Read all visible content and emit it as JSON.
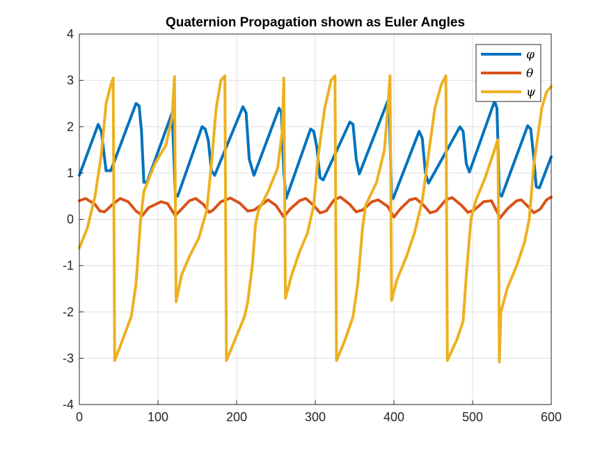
{
  "chart_data": {
    "type": "line",
    "title": "Quaternion Propagation shown as Euler Angles",
    "xlabel": "",
    "ylabel": "",
    "xlim": [
      0,
      600
    ],
    "ylim": [
      -4,
      4
    ],
    "xticks": [
      0,
      100,
      200,
      300,
      400,
      500,
      600
    ],
    "yticks": [
      -4,
      -3,
      -2,
      -1,
      0,
      1,
      2,
      3,
      4
    ],
    "grid": true,
    "legend_position": "top-right",
    "series": [
      {
        "name": "φ",
        "color": "#0072BD",
        "points": [
          [
            0,
            0.95
          ],
          [
            24,
            2.05
          ],
          [
            28,
            1.9
          ],
          [
            34,
            1.05
          ],
          [
            40,
            1.05
          ],
          [
            72,
            2.5
          ],
          [
            76,
            2.45
          ],
          [
            79,
            1.9
          ],
          [
            82,
            0.8
          ],
          [
            86,
            0.8
          ],
          [
            118,
            2.3
          ],
          [
            122,
            0.55
          ],
          [
            125,
            0.5
          ],
          [
            156,
            2.0
          ],
          [
            160,
            1.95
          ],
          [
            164,
            1.7
          ],
          [
            168,
            1.05
          ],
          [
            172,
            0.95
          ],
          [
            208,
            2.43
          ],
          [
            212,
            2.3
          ],
          [
            216,
            1.3
          ],
          [
            222,
            0.95
          ],
          [
            254,
            2.4
          ],
          [
            257,
            2.3
          ],
          [
            260,
            1.0
          ],
          [
            263,
            0.45
          ],
          [
            294,
            1.95
          ],
          [
            298,
            1.9
          ],
          [
            302,
            1.55
          ],
          [
            306,
            0.9
          ],
          [
            310,
            0.85
          ],
          [
            344,
            2.1
          ],
          [
            348,
            2.05
          ],
          [
            352,
            1.3
          ],
          [
            356,
            0.98
          ],
          [
            392,
            2.55
          ],
          [
            394,
            2.4
          ],
          [
            397,
            0.5
          ],
          [
            399,
            0.45
          ],
          [
            432,
            1.9
          ],
          [
            436,
            1.75
          ],
          [
            440,
            1.0
          ],
          [
            444,
            0.78
          ],
          [
            484,
            2.0
          ],
          [
            488,
            1.9
          ],
          [
            492,
            1.2
          ],
          [
            496,
            1.02
          ],
          [
            528,
            2.55
          ],
          [
            531,
            2.4
          ],
          [
            534,
            0.55
          ],
          [
            537,
            0.5
          ],
          [
            570,
            2.02
          ],
          [
            574,
            1.95
          ],
          [
            578,
            1.3
          ],
          [
            581,
            0.7
          ],
          [
            585,
            0.68
          ],
          [
            600,
            1.35
          ]
        ]
      },
      {
        "name": "θ",
        "color": "#D95319",
        "points": [
          [
            0,
            0.4
          ],
          [
            8,
            0.45
          ],
          [
            20,
            0.32
          ],
          [
            26,
            0.18
          ],
          [
            32,
            0.16
          ],
          [
            42,
            0.32
          ],
          [
            52,
            0.45
          ],
          [
            62,
            0.38
          ],
          [
            72,
            0.18
          ],
          [
            80,
            0.08
          ],
          [
            88,
            0.25
          ],
          [
            104,
            0.38
          ],
          [
            112,
            0.34
          ],
          [
            122,
            0.08
          ],
          [
            130,
            0.22
          ],
          [
            140,
            0.4
          ],
          [
            148,
            0.45
          ],
          [
            158,
            0.32
          ],
          [
            165,
            0.15
          ],
          [
            170,
            0.2
          ],
          [
            180,
            0.38
          ],
          [
            192,
            0.46
          ],
          [
            204,
            0.35
          ],
          [
            214,
            0.18
          ],
          [
            222,
            0.2
          ],
          [
            232,
            0.32
          ],
          [
            240,
            0.42
          ],
          [
            250,
            0.3
          ],
          [
            260,
            0.05
          ],
          [
            268,
            0.22
          ],
          [
            280,
            0.4
          ],
          [
            288,
            0.45
          ],
          [
            298,
            0.3
          ],
          [
            306,
            0.14
          ],
          [
            314,
            0.18
          ],
          [
            324,
            0.42
          ],
          [
            332,
            0.48
          ],
          [
            344,
            0.32
          ],
          [
            352,
            0.16
          ],
          [
            360,
            0.2
          ],
          [
            372,
            0.38
          ],
          [
            380,
            0.42
          ],
          [
            392,
            0.28
          ],
          [
            400,
            0.05
          ],
          [
            408,
            0.22
          ],
          [
            420,
            0.42
          ],
          [
            428,
            0.45
          ],
          [
            438,
            0.3
          ],
          [
            446,
            0.14
          ],
          [
            454,
            0.18
          ],
          [
            466,
            0.42
          ],
          [
            474,
            0.47
          ],
          [
            486,
            0.3
          ],
          [
            494,
            0.15
          ],
          [
            502,
            0.2
          ],
          [
            514,
            0.38
          ],
          [
            524,
            0.4
          ],
          [
            535,
            0.03
          ],
          [
            544,
            0.22
          ],
          [
            556,
            0.4
          ],
          [
            562,
            0.42
          ],
          [
            572,
            0.25
          ],
          [
            578,
            0.14
          ],
          [
            586,
            0.22
          ],
          [
            594,
            0.42
          ],
          [
            600,
            0.48
          ]
        ]
      },
      {
        "name": "ψ",
        "color": "#EDB120",
        "points": [
          [
            0,
            -0.62
          ],
          [
            10,
            -0.2
          ],
          [
            20,
            0.5
          ],
          [
            28,
            1.4
          ],
          [
            34,
            2.5
          ],
          [
            40,
            2.9
          ],
          [
            43,
            3.05
          ],
          [
            45,
            -3.05
          ],
          [
            55,
            -2.6
          ],
          [
            66,
            -2.1
          ],
          [
            72,
            -1.4
          ],
          [
            78,
            0.0
          ],
          [
            82,
            0.6
          ],
          [
            96,
            1.2
          ],
          [
            110,
            1.6
          ],
          [
            118,
            2.2
          ],
          [
            121,
            3.08
          ],
          [
            123,
            -1.78
          ],
          [
            130,
            -1.2
          ],
          [
            140,
            -0.8
          ],
          [
            152,
            -0.4
          ],
          [
            162,
            0.2
          ],
          [
            168,
            1.2
          ],
          [
            174,
            2.4
          ],
          [
            180,
            3.0
          ],
          [
            185,
            3.1
          ],
          [
            187,
            -3.05
          ],
          [
            198,
            -2.6
          ],
          [
            210,
            -2.1
          ],
          [
            214,
            -1.8
          ],
          [
            220,
            -1.0
          ],
          [
            224,
            -0.1
          ],
          [
            228,
            0.2
          ],
          [
            240,
            0.6
          ],
          [
            252,
            1.1
          ],
          [
            258,
            1.9
          ],
          [
            260,
            3.05
          ],
          [
            262,
            -1.7
          ],
          [
            270,
            -1.2
          ],
          [
            280,
            -0.7
          ],
          [
            290,
            -0.3
          ],
          [
            298,
            0.3
          ],
          [
            304,
            1.4
          ],
          [
            312,
            2.4
          ],
          [
            320,
            3.0
          ],
          [
            325,
            3.1
          ],
          [
            327,
            -3.05
          ],
          [
            338,
            -2.6
          ],
          [
            348,
            -2.1
          ],
          [
            354,
            -1.4
          ],
          [
            360,
            -0.2
          ],
          [
            364,
            0.3
          ],
          [
            378,
            0.8
          ],
          [
            388,
            1.5
          ],
          [
            393,
            2.6
          ],
          [
            395,
            3.1
          ],
          [
            397,
            -1.75
          ],
          [
            404,
            -1.3
          ],
          [
            416,
            -0.8
          ],
          [
            426,
            -0.3
          ],
          [
            436,
            0.4
          ],
          [
            444,
            1.4
          ],
          [
            452,
            2.4
          ],
          [
            460,
            2.9
          ],
          [
            466,
            3.1
          ],
          [
            468,
            -3.05
          ],
          [
            480,
            -2.6
          ],
          [
            488,
            -2.2
          ],
          [
            492,
            -1.2
          ],
          [
            498,
            0.0
          ],
          [
            504,
            0.4
          ],
          [
            516,
            0.9
          ],
          [
            526,
            1.4
          ],
          [
            532,
            1.72
          ],
          [
            533,
            0.1
          ],
          [
            534,
            -3.08
          ],
          [
            536,
            -2.0
          ],
          [
            544,
            -1.5
          ],
          [
            556,
            -1.0
          ],
          [
            566,
            -0.5
          ],
          [
            572,
            0.0
          ],
          [
            578,
            1.2
          ],
          [
            588,
            2.4
          ],
          [
            594,
            2.75
          ],
          [
            600,
            2.87
          ]
        ]
      }
    ]
  },
  "legend": {
    "items": [
      {
        "label": "φ",
        "color": "#0072BD"
      },
      {
        "label": "θ",
        "color": "#D95319"
      },
      {
        "label": "ψ",
        "color": "#EDB120"
      }
    ]
  }
}
